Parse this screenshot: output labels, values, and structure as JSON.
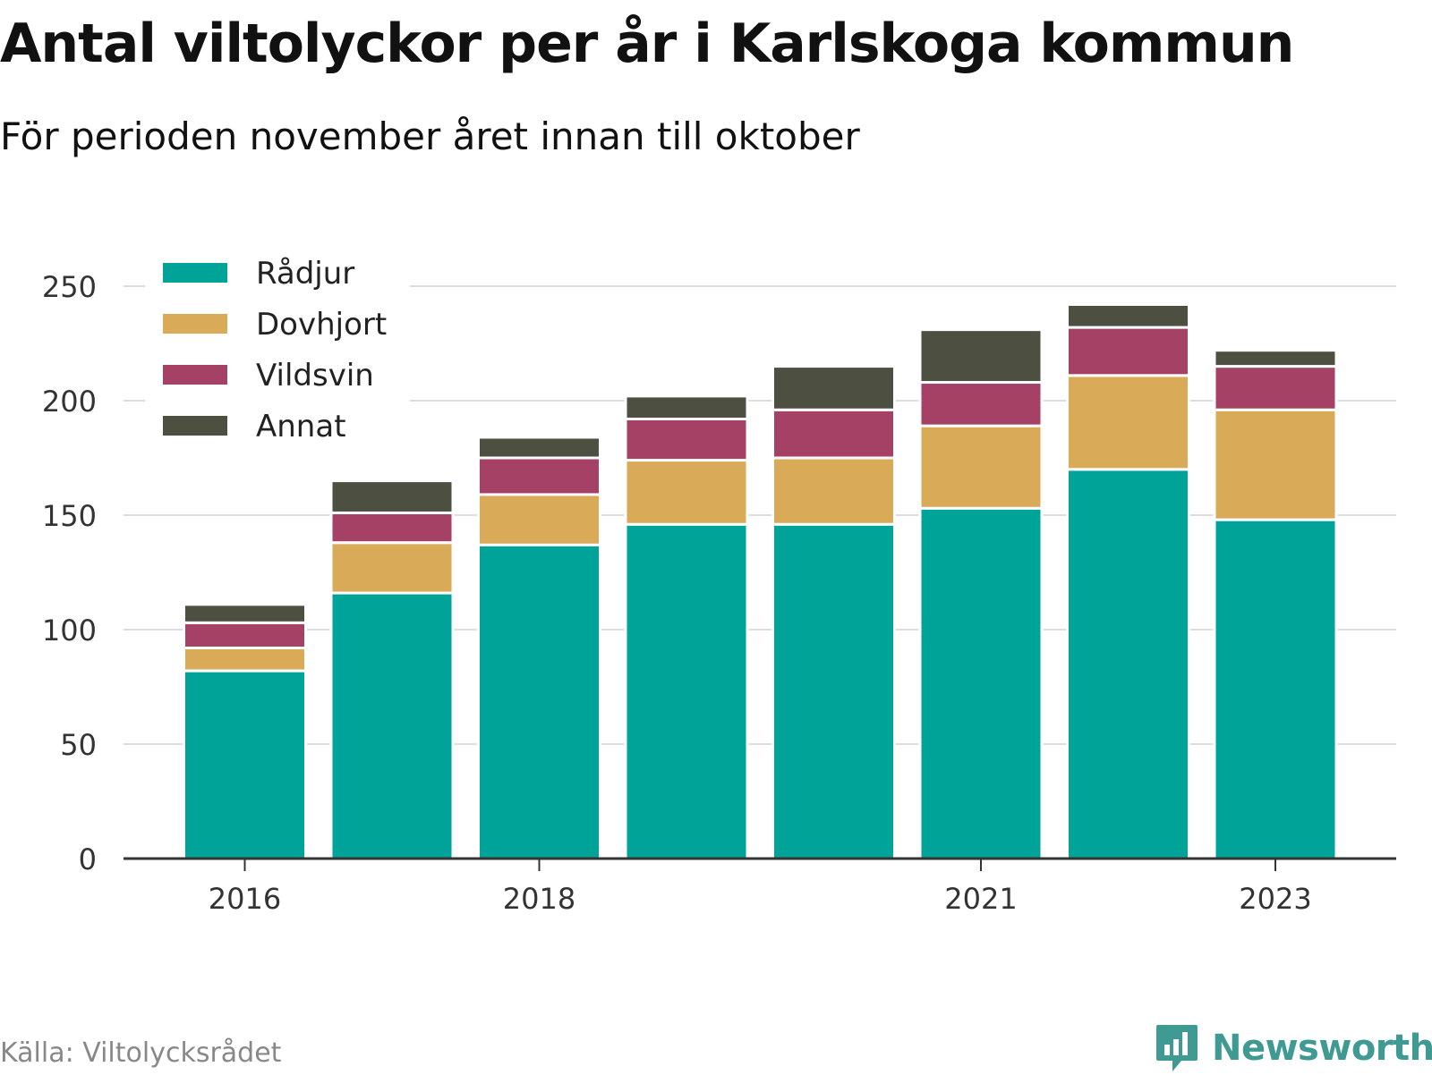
{
  "title": "Antal viltolyckor per år i Karlskoga kommun",
  "subtitle": "För perioden november året innan till oktober",
  "source": "Källa: Viltolycksrådet",
  "brand": {
    "name": "Newsworthy",
    "icon": "newsworthy-logo-icon"
  },
  "chart_data": {
    "type": "bar",
    "stacked": true,
    "x": [
      2016,
      2017,
      2018,
      2019,
      2020,
      2021,
      2022,
      2023
    ],
    "x_ticks": [
      "2016",
      "2018",
      "2021",
      "2023"
    ],
    "y_ticks": [
      "0",
      "50",
      "100",
      "150",
      "200",
      "250"
    ],
    "ylim": [
      0,
      260
    ],
    "grid": true,
    "legend_position": "top-left",
    "series": [
      {
        "name": "Rådjur",
        "color": "#00a398",
        "values": [
          82,
          116,
          137,
          146,
          146,
          153,
          170,
          148
        ]
      },
      {
        "name": "Dovhjort",
        "color": "#d9ab59",
        "values": [
          10,
          22,
          22,
          28,
          29,
          36,
          41,
          48
        ]
      },
      {
        "name": "Vildsvin",
        "color": "#a64166",
        "values": [
          11,
          13,
          16,
          18,
          21,
          19,
          21,
          19
        ]
      },
      {
        "name": "Annat",
        "color": "#4d4f40",
        "values": [
          8,
          14,
          9,
          10,
          19,
          23,
          10,
          7
        ]
      }
    ]
  }
}
